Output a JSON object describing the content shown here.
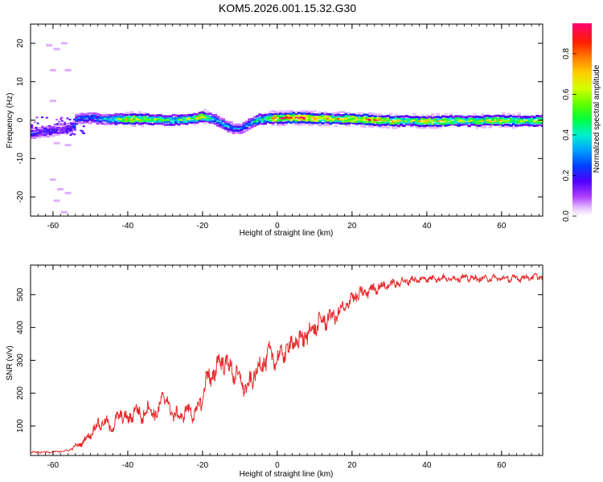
{
  "title": "KOM5.2026.001.15.32.G30",
  "colorbar": {
    "label": "Normalized spectral amplitude",
    "ticks": [
      "0.0",
      "0.2",
      "0.4",
      "0.6",
      "0.8"
    ]
  },
  "chart_data": [
    {
      "type": "heatmap",
      "xlabel": "Height of straight line (km)",
      "ylabel": "Frequency (Hz)",
      "xlim": [
        -66,
        71
      ],
      "ylim": [
        -25,
        25
      ],
      "xticks": [
        -60,
        -40,
        -20,
        0,
        20,
        40,
        60
      ],
      "yticks": [
        -20,
        -10,
        0,
        10,
        20
      ],
      "zlim": [
        0,
        0.95
      ],
      "ridge": {
        "x": [
          -66,
          -62,
          -58,
          -55,
          -54,
          -50,
          -45,
          -40,
          -35,
          -30,
          -25,
          -20,
          -17,
          -14,
          -12,
          -10,
          -8,
          -5,
          -3,
          0,
          5,
          10,
          15,
          20,
          25,
          30,
          35,
          40,
          45,
          50,
          55,
          60,
          65,
          71
        ],
        "y": [
          -3.5,
          -3,
          -2.5,
          -2,
          0.5,
          0.5,
          0.2,
          0.3,
          0.2,
          0,
          0.2,
          0.8,
          0.2,
          -1.5,
          -2.2,
          -2.2,
          -1,
          0.2,
          0.5,
          0.5,
          0.6,
          0.5,
          0.3,
          0.3,
          0,
          -0.2,
          -0.2,
          -0.3,
          -0.2,
          -0.2,
          -0.2,
          -0.1,
          -0.2,
          -0.2
        ],
        "amp": [
          0.25,
          0.25,
          0.2,
          0.25,
          0.3,
          0.3,
          0.4,
          0.75,
          0.6,
          0.5,
          0.55,
          0.7,
          0.35,
          0.35,
          0.3,
          0.3,
          0.35,
          0.5,
          0.6,
          0.85,
          0.9,
          0.85,
          0.7,
          0.75,
          0.8,
          0.7,
          0.6,
          0.7,
          0.65,
          0.55,
          0.65,
          0.7,
          0.6,
          0.55
        ]
      },
      "scatter_blobs": [
        {
          "x": -61,
          "y": 19.5,
          "amp": 0.05
        },
        {
          "x": -59,
          "y": 18.5,
          "amp": 0.05
        },
        {
          "x": -57,
          "y": 20,
          "amp": 0.05
        },
        {
          "x": -60,
          "y": 13,
          "amp": 0.05
        },
        {
          "x": -56,
          "y": 13,
          "amp": 0.05
        },
        {
          "x": -60,
          "y": 5,
          "amp": 0.05
        },
        {
          "x": -59,
          "y": -6,
          "amp": 0.05
        },
        {
          "x": -56,
          "y": -6.5,
          "amp": 0.05
        },
        {
          "x": -60,
          "y": -15.5,
          "amp": 0.05
        },
        {
          "x": -58,
          "y": -18,
          "amp": 0.05
        },
        {
          "x": -56,
          "y": -19,
          "amp": 0.05
        },
        {
          "x": -59,
          "y": -21,
          "amp": 0.05
        },
        {
          "x": -57,
          "y": -24,
          "amp": 0.05
        }
      ]
    },
    {
      "type": "line",
      "xlabel": "Height of straight line (km)",
      "ylabel": "SNR (v/v)",
      "xlim": [
        -66,
        71
      ],
      "ylim": [
        10,
        590
      ],
      "xticks": [
        -60,
        -40,
        -20,
        0,
        20,
        40,
        60
      ],
      "yticks": [
        100,
        200,
        300,
        400,
        500
      ],
      "series": [
        {
          "name": "SNR",
          "color": "#e8282a",
          "x": [
            -66,
            -60,
            -56,
            -52,
            -50,
            -48,
            -46,
            -44,
            -42,
            -40,
            -38,
            -36,
            -34,
            -32,
            -31,
            -30,
            -28,
            -26,
            -24,
            -22,
            -20,
            -19,
            -18,
            -16,
            -14,
            -13,
            -12,
            -10,
            -8,
            -6,
            -4,
            -2,
            0,
            2,
            4,
            6,
            8,
            10,
            12,
            14,
            16,
            18,
            20,
            22,
            24,
            26,
            28,
            30,
            32,
            34,
            36,
            38,
            40,
            42,
            44,
            46,
            48,
            50,
            54,
            58,
            62,
            66,
            71
          ],
          "y": [
            20,
            20,
            25,
            50,
            75,
            105,
            110,
            95,
            140,
            115,
            150,
            130,
            160,
            120,
            200,
            180,
            140,
            125,
            150,
            135,
            180,
            260,
            230,
            290,
            300,
            280,
            270,
            240,
            210,
            260,
            290,
            320,
            300,
            330,
            350,
            360,
            380,
            400,
            420,
            430,
            440,
            460,
            490,
            500,
            510,
            520,
            525,
            530,
            535,
            540,
            545,
            545,
            550,
            550,
            550,
            548,
            550,
            552,
            548,
            550,
            548,
            552,
            555
          ],
          "noise": [
            3,
            3,
            3,
            12,
            16,
            20,
            22,
            22,
            25,
            25,
            28,
            28,
            30,
            30,
            30,
            30,
            28,
            25,
            25,
            28,
            35,
            40,
            40,
            40,
            40,
            40,
            40,
            35,
            35,
            35,
            38,
            38,
            38,
            40,
            40,
            40,
            38,
            36,
            34,
            32,
            30,
            28,
            26,
            24,
            22,
            20,
            18,
            16,
            16,
            15,
            14,
            14,
            13,
            13,
            12,
            12,
            12,
            12,
            12,
            12,
            12,
            12,
            12
          ]
        }
      ]
    }
  ]
}
